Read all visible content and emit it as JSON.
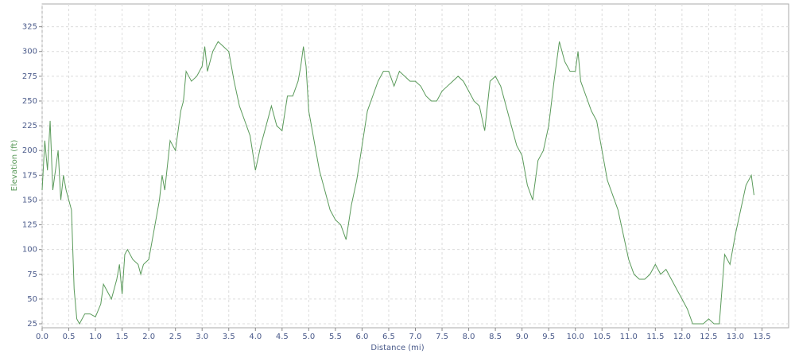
{
  "chart_data": {
    "type": "line",
    "xlabel": "Distance (mi)",
    "ylabel": "Elevation (ft)",
    "color": "#5a9a5a",
    "grid": true,
    "xlim": [
      0,
      14.0
    ],
    "ylim": [
      21,
      348
    ],
    "xticks": [
      {
        "value": 0,
        "label": "0.0"
      },
      0.5,
      {
        "value": 1,
        "label": "1.0"
      },
      1.5,
      {
        "value": 2,
        "label": "2.0"
      },
      2.5,
      {
        "value": 3,
        "label": "3.0"
      },
      3.5,
      {
        "value": 4,
        "label": "4.0"
      },
      4.5,
      {
        "value": 5,
        "label": "5.0"
      },
      5.5,
      {
        "value": 6,
        "label": "6.0"
      },
      6.5,
      {
        "value": 7,
        "label": "7.0"
      },
      7.5,
      {
        "value": 8,
        "label": "8.0"
      },
      8.5,
      {
        "value": 9,
        "label": "9.0"
      },
      9.5,
      {
        "value": 10,
        "label": "10.0"
      },
      10.5,
      {
        "value": 11,
        "label": "11.0"
      },
      11.5,
      {
        "value": 12,
        "label": "12.0"
      },
      12.5,
      {
        "value": 13,
        "label": "13.0"
      },
      13.5
    ],
    "yticks": [
      25,
      50,
      75,
      100,
      125,
      150,
      175,
      200,
      225,
      250,
      275,
      300,
      325
    ],
    "x": [
      0,
      0.05,
      0.1,
      0.15,
      0.2,
      0.3,
      0.35,
      0.4,
      0.45,
      0.5,
      0.55,
      0.6,
      0.65,
      0.7,
      0.8,
      0.9,
      1.0,
      1.1,
      1.15,
      1.3,
      1.4,
      1.45,
      1.5,
      1.55,
      1.6,
      1.7,
      1.8,
      1.85,
      1.9,
      2.0,
      2.1,
      2.2,
      2.25,
      2.3,
      2.4,
      2.5,
      2.6,
      2.65,
      2.7,
      2.8,
      2.9,
      3.0,
      3.05,
      3.1,
      3.2,
      3.3,
      3.4,
      3.5,
      3.6,
      3.7,
      3.8,
      3.9,
      4.0,
      4.1,
      4.2,
      4.3,
      4.4,
      4.5,
      4.6,
      4.7,
      4.8,
      4.85,
      4.9,
      4.95,
      5.0,
      5.1,
      5.2,
      5.3,
      5.4,
      5.5,
      5.6,
      5.7,
      5.8,
      5.9,
      6.0,
      6.1,
      6.2,
      6.3,
      6.4,
      6.5,
      6.6,
      6.7,
      6.8,
      6.9,
      7.0,
      7.1,
      7.2,
      7.3,
      7.4,
      7.5,
      7.6,
      7.7,
      7.8,
      7.9,
      8.0,
      8.1,
      8.2,
      8.3,
      8.4,
      8.5,
      8.6,
      8.7,
      8.8,
      8.9,
      9.0,
      9.1,
      9.2,
      9.3,
      9.4,
      9.5,
      9.6,
      9.7,
      9.8,
      9.9,
      10.0,
      10.05,
      10.1,
      10.2,
      10.3,
      10.4,
      10.5,
      10.6,
      10.7,
      10.8,
      10.9,
      11.0,
      11.1,
      11.2,
      11.3,
      11.4,
      11.5,
      11.6,
      11.7,
      11.8,
      11.9,
      12.0,
      12.1,
      12.2,
      12.3,
      12.4,
      12.5,
      12.6,
      12.7,
      12.8,
      12.9,
      13.0,
      13.1,
      13.2,
      13.3,
      13.35
    ],
    "values": [
      160,
      210,
      180,
      230,
      160,
      200,
      150,
      175,
      160,
      150,
      140,
      60,
      30,
      25,
      35,
      35,
      32,
      45,
      65,
      50,
      70,
      85,
      55,
      95,
      100,
      90,
      85,
      75,
      85,
      90,
      120,
      150,
      175,
      160,
      210,
      200,
      240,
      250,
      280,
      270,
      275,
      285,
      305,
      280,
      300,
      310,
      305,
      300,
      270,
      245,
      230,
      215,
      180,
      205,
      225,
      245,
      225,
      220,
      255,
      255,
      270,
      285,
      305,
      285,
      240,
      210,
      180,
      160,
      140,
      130,
      125,
      110,
      145,
      170,
      205,
      240,
      255,
      270,
      280,
      280,
      265,
      280,
      275,
      270,
      270,
      265,
      255,
      250,
      250,
      260,
      265,
      270,
      275,
      270,
      260,
      250,
      245,
      220,
      270,
      275,
      265,
      245,
      225,
      205,
      195,
      165,
      150,
      190,
      200,
      225,
      270,
      310,
      290,
      280,
      280,
      300,
      270,
      255,
      240,
      230,
      200,
      170,
      155,
      140,
      115,
      90,
      75,
      70,
      70,
      75,
      85,
      75,
      80,
      70,
      60,
      50,
      40,
      25,
      25,
      25,
      30,
      25,
      25,
      95,
      85,
      115,
      140,
      165,
      175,
      155
    ]
  }
}
